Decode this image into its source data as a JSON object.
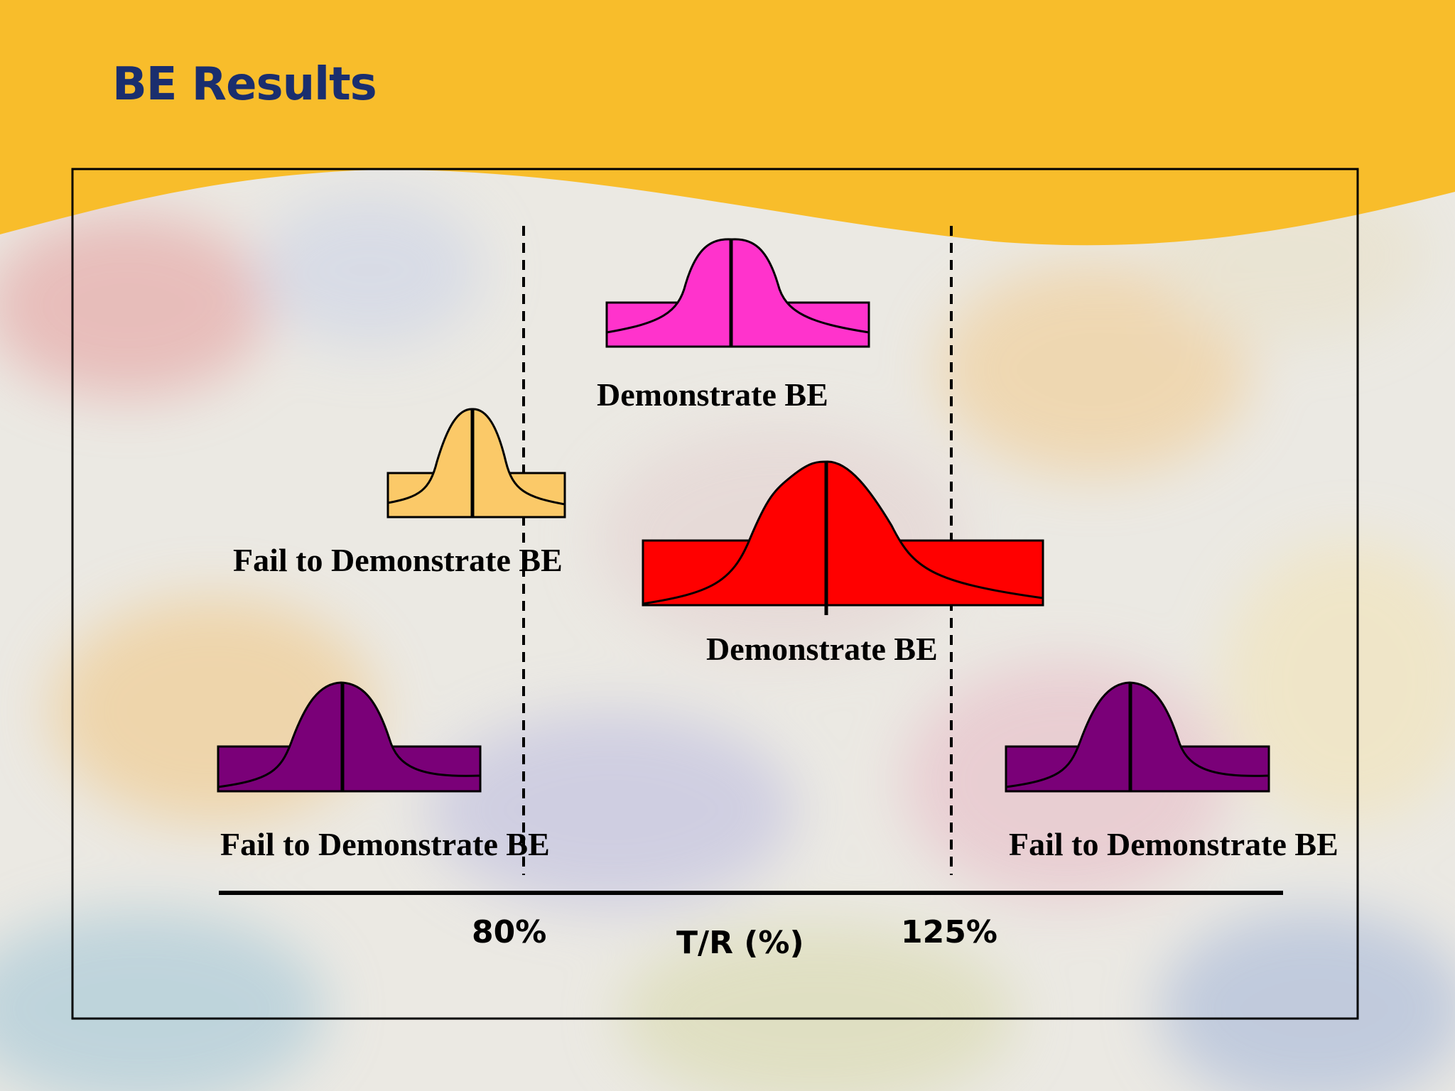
{
  "slide": {
    "title": "BE Results"
  },
  "colors": {
    "banner": "#f8bd2b",
    "title_text": "#1a2e6e",
    "curve_pink": "#ff33cc",
    "curve_light_orange": "#fbc968",
    "curve_red": "#ff0000",
    "curve_purple": "#7a0078"
  },
  "diagram": {
    "limit_low": "80%",
    "limit_high": "125%",
    "axis_label": "T/R (%)",
    "curves": [
      {
        "color": "pink",
        "label": "Demonstrate BE"
      },
      {
        "color": "light-orange",
        "label": "Fail to Demonstrate BE"
      },
      {
        "color": "red",
        "label": "Demonstrate BE"
      },
      {
        "color": "purple",
        "label": "Fail to Demonstrate BE"
      },
      {
        "color": "purple",
        "label": "Fail to Demonstrate BE"
      }
    ]
  }
}
